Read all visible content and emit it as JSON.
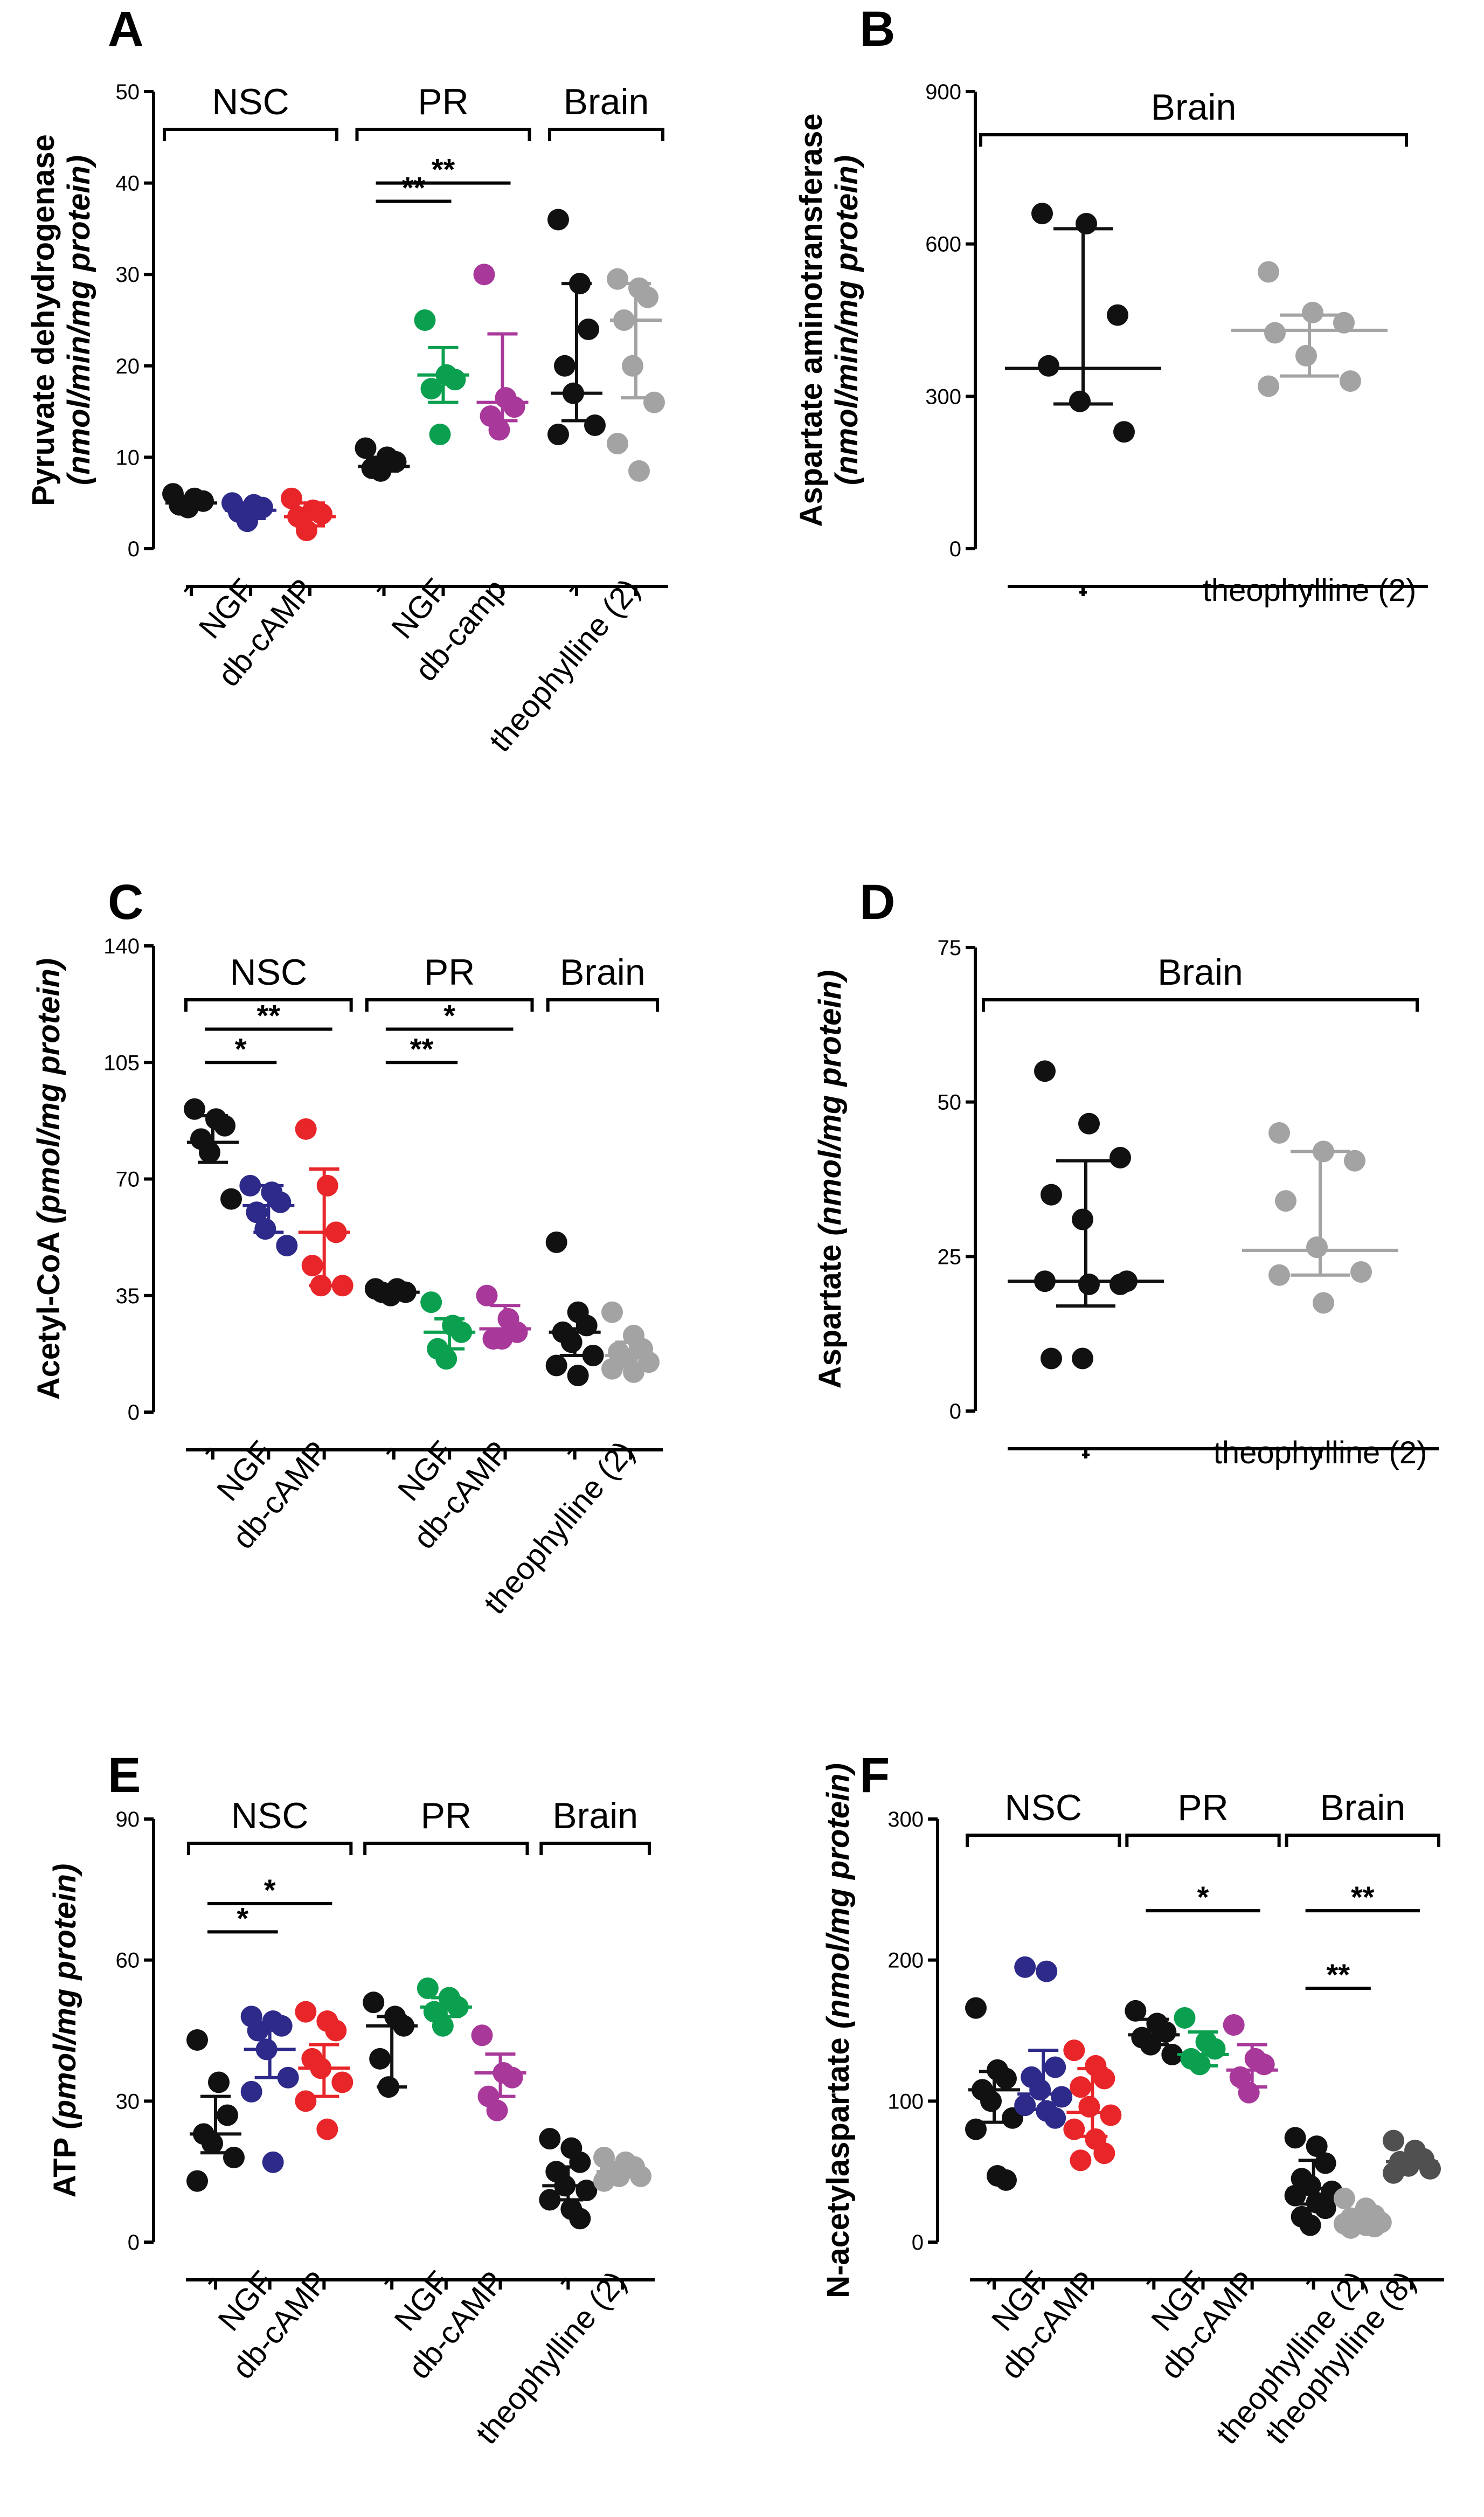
{
  "figure": {
    "colors": {
      "black": "#111111",
      "blue": "#2e2a8a",
      "red": "#e8262a",
      "green": "#0aa04f",
      "magenta": "#a8399a",
      "gray": "#a3a3a3",
      "darkgray": "#505050"
    },
    "panels": [
      {
        "id": "A",
        "ylabel_main": "Pyruvate dehydrogenase",
        "ylabel_unit": "(nmol/min/mg protein)",
        "ylim": [
          0,
          50
        ],
        "yticks": [
          0,
          10,
          20,
          30,
          40,
          50
        ],
        "groups": [
          {
            "label": "NSC",
            "from": 0,
            "to": 2
          },
          {
            "label": "PR",
            "from": 3,
            "to": 5
          },
          {
            "label": "Brain",
            "from": 6,
            "to": 7
          }
        ],
        "sig": [
          {
            "from": 3,
            "to": 4,
            "label": "**",
            "y": 38
          },
          {
            "from": 3,
            "to": 5,
            "label": "**",
            "y": 40
          }
        ],
        "categories": [
          {
            "label": "-",
            "color": "black",
            "center": 5.0,
            "err": [
              4.5,
              5.5
            ],
            "points": [
              6.0,
              5.2,
              4.5,
              4.8,
              5.5
            ]
          },
          {
            "label": "NGF",
            "color": "blue",
            "center": 4.2,
            "err": [
              3.3,
              5.0
            ],
            "points": [
              5.0,
              3.0,
              4.5,
              4.0,
              4.8
            ]
          },
          {
            "label": "db-cAMP",
            "color": "red",
            "center": 3.5,
            "err": [
              2.5,
              5.0
            ],
            "points": [
              5.5,
              2.0,
              3.5,
              4.2,
              3.8
            ]
          },
          {
            "label": "-",
            "color": "black",
            "center": 9.0,
            "err": [
              8.5,
              10.0
            ],
            "points": [
              11.0,
              8.5,
              9.5,
              8.8,
              10.0
            ]
          },
          {
            "label": "NGF",
            "color": "green",
            "center": 19.0,
            "err": [
              16.0,
              22.0
            ],
            "points": [
              25.0,
              12.5,
              18.5,
              19.0,
              17.5
            ]
          },
          {
            "label": "db-camp",
            "color": "magenta",
            "center": 16.0,
            "err": [
              14.0,
              23.5
            ],
            "points": [
              30.0,
              13.0,
              14.5,
              16.5,
              15.5
            ]
          },
          {
            "label": "-",
            "color": "black",
            "center": 17.0,
            "err": [
              14.0,
              29.0
            ],
            "points": [
              36.0,
              29.0,
              24.0,
              20.0,
              17.0,
              13.5,
              12.5
            ]
          },
          {
            "label": "theophylline (2)",
            "color": "gray",
            "center": 25.0,
            "err": [
              16.5,
              29.0
            ],
            "points": [
              29.5,
              28.5,
              27.5,
              25.0,
              20.0,
              16.0,
              11.5,
              8.5
            ]
          }
        ]
      },
      {
        "id": "B",
        "ylabel_main": "Aspartate aminotransferase",
        "ylabel_unit": "(nmol/min/mg protein)",
        "ylim": [
          0,
          900
        ],
        "yticks": [
          0,
          300,
          600,
          900
        ],
        "groups": [
          {
            "label": "Brain",
            "from": 0,
            "to": 1
          }
        ],
        "sig": [],
        "categories": [
          {
            "label": "-",
            "color": "black",
            "center": 355,
            "err": [
              285,
              630
            ],
            "points": [
              660,
              640,
              460,
              360,
              290,
              230
            ]
          },
          {
            "label": "theophylline (2)",
            "color": "gray",
            "center": 430,
            "err": [
              340,
              460
            ],
            "points": [
              545,
              465,
              445,
              425,
              380,
              330,
              320
            ]
          }
        ]
      },
      {
        "id": "C",
        "ylabel_main": "Acetyl-CoA",
        "ylabel_unit": "(pmol/mg protein)",
        "ylim": [
          0,
          140
        ],
        "yticks": [
          0,
          35,
          70,
          105,
          140
        ],
        "groups": [
          {
            "label": "NSC",
            "from": 0,
            "to": 2
          },
          {
            "label": "PR",
            "from": 3,
            "to": 5
          },
          {
            "label": "Brain",
            "from": 6,
            "to": 7
          }
        ],
        "sig": [
          {
            "from": 0,
            "to": 1,
            "label": "*",
            "y": 105
          },
          {
            "from": 0,
            "to": 2,
            "label": "**",
            "y": 115
          },
          {
            "from": 3,
            "to": 4,
            "label": "**",
            "y": 105
          },
          {
            "from": 3,
            "to": 5,
            "label": "*",
            "y": 115
          }
        ],
        "categories": [
          {
            "label": "-",
            "color": "black",
            "center": 81,
            "err": [
              75,
              89
            ],
            "points": [
              91,
              88,
              86,
              82,
              78,
              64
            ]
          },
          {
            "label": "NGF",
            "color": "blue",
            "center": 62,
            "err": [
              54,
              68
            ],
            "points": [
              68,
              66,
              63,
              60,
              55,
              50
            ]
          },
          {
            "label": "db-cAMP",
            "color": "red",
            "center": 54,
            "err": [
              38,
              73
            ],
            "points": [
              85,
              68,
              54,
              44,
              38,
              38
            ]
          },
          {
            "label": "-",
            "color": "black",
            "center": 36,
            "err": [
              35,
              37
            ],
            "points": [
              37,
              36,
              35,
              36,
              37
            ]
          },
          {
            "label": "NGF",
            "color": "green",
            "center": 24,
            "err": [
              19,
              28
            ],
            "points": [
              33,
              26,
              24,
              19,
              16
            ]
          },
          {
            "label": "db-cAMP",
            "color": "magenta",
            "center": 25,
            "err": [
              22,
              32
            ],
            "points": [
              35,
              28,
              24,
              22,
              22
            ]
          },
          {
            "label": "-",
            "color": "black",
            "center": 24,
            "err": [
              17,
              25
            ],
            "points": [
              51,
              30,
              26,
              24,
              21,
              17,
              14,
              11
            ]
          },
          {
            "label": "theophylline (2)",
            "color": "gray",
            "center": 17,
            "err": [
              14,
              21
            ],
            "points": [
              30,
              23,
              19,
              18,
              16,
              15,
              13,
              12
            ]
          }
        ]
      },
      {
        "id": "D",
        "ylabel_main": "Aspartate",
        "ylabel_unit": "(nmol/mg protein)",
        "ylim": [
          0,
          75
        ],
        "yticks": [
          0,
          25,
          50,
          75
        ],
        "groups": [
          {
            "label": "Brain",
            "from": 0,
            "to": 1
          }
        ],
        "sig": [],
        "categories": [
          {
            "label": "-",
            "color": "black",
            "center": 21,
            "err": [
              17,
              40.5
            ],
            "points": [
              55,
              46.5,
              41,
              35,
              31,
              21,
              20.5,
              20.5,
              21,
              8.5,
              8.5
            ]
          },
          {
            "label": "theophylline (2)",
            "color": "gray",
            "center": 26,
            "err": [
              22,
              42
            ],
            "points": [
              45,
              42,
              40.5,
              34,
              26.5,
              22.5,
              22,
              17.5
            ]
          }
        ]
      },
      {
        "id": "E",
        "ylabel_main": "ATP",
        "ylabel_unit": "(pmol/mg protein)",
        "ylim": [
          0,
          90
        ],
        "yticks": [
          0,
          30,
          60,
          90
        ],
        "groups": [
          {
            "label": "NSC",
            "from": 0,
            "to": 2
          },
          {
            "label": "PR",
            "from": 3,
            "to": 5
          },
          {
            "label": "Brain",
            "from": 6,
            "to": 7
          }
        ],
        "sig": [
          {
            "from": 0,
            "to": 1,
            "label": "*",
            "y": 66
          },
          {
            "from": 0,
            "to": 2,
            "label": "*",
            "y": 72
          }
        ],
        "categories": [
          {
            "label": "-",
            "color": "black",
            "center": 23,
            "err": [
              19,
              31
            ],
            "points": [
              43,
              34,
              27,
              23,
              21,
              18,
              13
            ]
          },
          {
            "label": "NGF",
            "color": "blue",
            "center": 41,
            "err": [
              35,
              46
            ],
            "points": [
              48,
              47,
              46,
              45,
              41,
              35,
              32,
              17
            ]
          },
          {
            "label": "db-cAMP",
            "color": "red",
            "center": 37,
            "err": [
              31,
              42
            ],
            "points": [
              49,
              47,
              45,
              39,
              37,
              34,
              30,
              24
            ]
          },
          {
            "label": "-",
            "color": "black",
            "center": 46,
            "err": [
              33,
              48
            ],
            "points": [
              51,
              48,
              46,
              39,
              33
            ]
          },
          {
            "label": "NGF",
            "color": "green",
            "center": 50,
            "err": [
              48,
              52
            ],
            "points": [
              54,
              52,
              50,
              49,
              46
            ]
          },
          {
            "label": "db-cAMP",
            "color": "magenta",
            "center": 36,
            "err": [
              31,
              40
            ],
            "points": [
              44,
              36,
              35,
              31,
              28
            ]
          },
          {
            "label": "-",
            "color": "black",
            "center": 12,
            "err": [
              9,
              16
            ],
            "points": [
              22,
              20,
              17,
              15,
              12,
              11,
              9,
              7,
              5
            ]
          },
          {
            "label": "theophylline (2)",
            "color": "gray",
            "center": 15,
            "err": [
              14,
              17
            ],
            "points": [
              18,
              17,
              16,
              15,
              14,
              14,
              13
            ]
          }
        ]
      },
      {
        "id": "F",
        "ylabel_main": "N-acetylaspartate",
        "ylabel_unit": "(nmol/mg protein)",
        "ylim": [
          0,
          300
        ],
        "yticks": [
          0,
          100,
          200,
          300
        ],
        "groups": [
          {
            "label": "NSC",
            "from": 0,
            "to": 2
          },
          {
            "label": "PR",
            "from": 3,
            "to": 5
          },
          {
            "label": "Brain",
            "from": 6,
            "to": 8
          }
        ],
        "sig": [
          {
            "from": 3,
            "to": 5,
            "label": "*",
            "y": 235
          },
          {
            "from": 6,
            "to": 7,
            "label": "**",
            "y": 180
          },
          {
            "from": 6,
            "to": 8,
            "label": "**",
            "y": 235
          }
        ],
        "categories": [
          {
            "label": "-",
            "color": "black",
            "center": 108,
            "err": [
              85,
              121
            ],
            "points": [
              166,
              122,
              116,
              108,
              100,
              88,
              80,
              47,
              44
            ]
          },
          {
            "label": "NGF",
            "color": "blue",
            "center": 105,
            "err": [
              94,
              136
            ],
            "points": [
              195,
              192,
              124,
              117,
              108,
              103,
              97,
              93,
              88
            ]
          },
          {
            "label": "db-cAMP",
            "color": "red",
            "center": 92,
            "err": [
              75,
              123
            ],
            "points": [
              136,
              125,
              116,
              110,
              96,
              90,
              80,
              73,
              63,
              58
            ]
          },
          {
            "label": "-",
            "color": "black",
            "center": 147,
            "err": [
              140,
              158
            ],
            "points": [
              164,
              155,
              149,
              145,
              140,
              133
            ]
          },
          {
            "label": "NGF",
            "color": "green",
            "center": 133,
            "err": [
              125,
              149
            ],
            "points": [
              159,
              142,
              137,
              130,
              126
            ]
          },
          {
            "label": "db-cAMP",
            "color": "magenta",
            "center": 122,
            "err": [
              110,
              140
            ],
            "points": [
              154,
              130,
              126,
              117,
              106
            ]
          },
          {
            "label": "-",
            "color": "black",
            "center": 38,
            "err": [
              27,
              58
            ],
            "points": [
              74,
              68,
              56,
              45,
              40,
              36,
              33,
              28,
              24,
              18,
              12
            ]
          },
          {
            "label": "theophylline (2)",
            "color": "gray",
            "center": 15,
            "err": [
              13,
              18
            ],
            "points": [
              31,
              24,
              19,
              17,
              15,
              14,
              13,
              12,
              11,
              10
            ]
          },
          {
            "label": "theophylline (8)",
            "color": "darkgray",
            "center": 57,
            "err": [
              53,
              62
            ],
            "points": [
              72,
              65,
              59,
              57,
              54,
              52,
              49
            ]
          }
        ]
      }
    ]
  }
}
